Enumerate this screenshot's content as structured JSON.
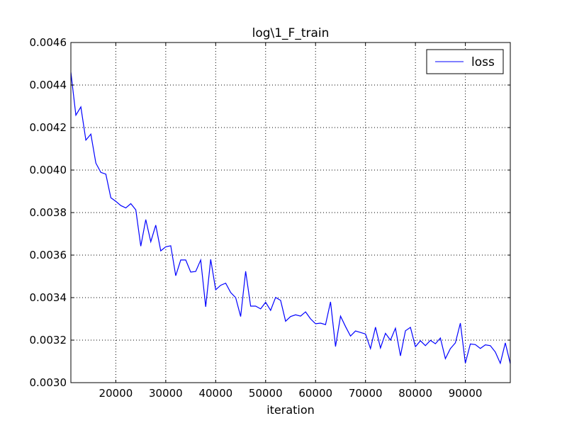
{
  "chart_data": {
    "type": "line",
    "title": "log\\1_F_train",
    "xlabel": "iteration",
    "ylabel": "",
    "xlim": [
      11000,
      99000
    ],
    "ylim": [
      0.003,
      0.0046
    ],
    "xticks": [
      20000,
      30000,
      40000,
      50000,
      60000,
      70000,
      80000,
      90000
    ],
    "xtick_labels": [
      "20000",
      "30000",
      "40000",
      "50000",
      "60000",
      "70000",
      "80000",
      "90000"
    ],
    "yticks": [
      0.003,
      0.0032,
      0.0034,
      0.0036,
      0.0038,
      0.004,
      0.0042,
      0.0044,
      0.0046
    ],
    "ytick_labels": [
      "0.0030",
      "0.0032",
      "0.0034",
      "0.0036",
      "0.0038",
      "0.0040",
      "0.0042",
      "0.0044",
      "0.0046"
    ],
    "grid": true,
    "legend_position": "top-right",
    "series": [
      {
        "name": "loss",
        "color": "#0000ff",
        "x": [
          11000,
          12000,
          13000,
          14000,
          15000,
          16000,
          17000,
          18000,
          19000,
          20000,
          21000,
          22000,
          23000,
          24000,
          25000,
          26000,
          27000,
          28000,
          29000,
          30000,
          31000,
          32000,
          33000,
          34000,
          35000,
          36000,
          37000,
          38000,
          39000,
          40000,
          41000,
          42000,
          43000,
          44000,
          45000,
          46000,
          47000,
          48000,
          49000,
          50000,
          51000,
          52000,
          53000,
          54000,
          55000,
          56000,
          57000,
          58000,
          59000,
          60000,
          61000,
          62000,
          63000,
          64000,
          65000,
          66000,
          67000,
          68000,
          69000,
          70000,
          71000,
          72000,
          73000,
          74000,
          75000,
          76000,
          77000,
          78000,
          79000,
          80000,
          81000,
          82000,
          83000,
          84000,
          85000,
          86000,
          87000,
          88000,
          89000,
          90000,
          91000,
          92000,
          93000,
          94000,
          95000,
          96000,
          97000,
          98000,
          99000
        ],
        "y": [
          0.00446,
          0.004258,
          0.004297,
          0.004141,
          0.004169,
          0.004033,
          0.003989,
          0.003981,
          0.00387,
          0.003853,
          0.003833,
          0.003822,
          0.003842,
          0.003813,
          0.003642,
          0.003767,
          0.003663,
          0.003741,
          0.00362,
          0.003639,
          0.003644,
          0.003503,
          0.003577,
          0.003577,
          0.00352,
          0.003523,
          0.003577,
          0.003357,
          0.00358,
          0.003437,
          0.003458,
          0.003468,
          0.003424,
          0.0034,
          0.003311,
          0.003524,
          0.00336,
          0.00336,
          0.003347,
          0.003378,
          0.00334,
          0.003401,
          0.003387,
          0.003289,
          0.003311,
          0.003319,
          0.003313,
          0.003333,
          0.0033,
          0.003277,
          0.00328,
          0.003273,
          0.00338,
          0.00317,
          0.003313,
          0.003264,
          0.003219,
          0.003243,
          0.003236,
          0.003229,
          0.00316,
          0.003261,
          0.003163,
          0.003232,
          0.0032,
          0.003256,
          0.003126,
          0.003244,
          0.00326,
          0.003169,
          0.003197,
          0.003174,
          0.003199,
          0.003183,
          0.00321,
          0.003113,
          0.00316,
          0.003187,
          0.00328,
          0.003092,
          0.003182,
          0.003179,
          0.003161,
          0.003178,
          0.003174,
          0.003144,
          0.003091,
          0.003187,
          0.003089
        ]
      }
    ]
  }
}
